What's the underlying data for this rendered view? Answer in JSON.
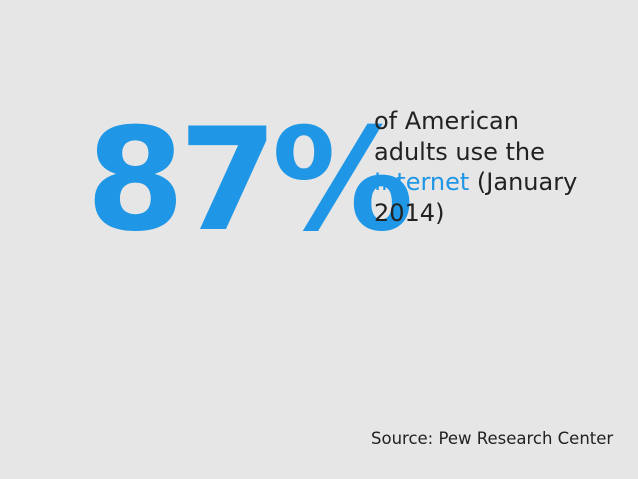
{
  "slide": {
    "stat": "87%",
    "caption": {
      "line1": "of American",
      "line2": "adults use the",
      "highlight_word": "Internet",
      "line3_rest": " (January",
      "line4": "2014)"
    },
    "source": "Source: Pew Research Center"
  },
  "colors": {
    "background": "#e6e6e6",
    "accent": "#1f97e6",
    "text": "#222222"
  }
}
